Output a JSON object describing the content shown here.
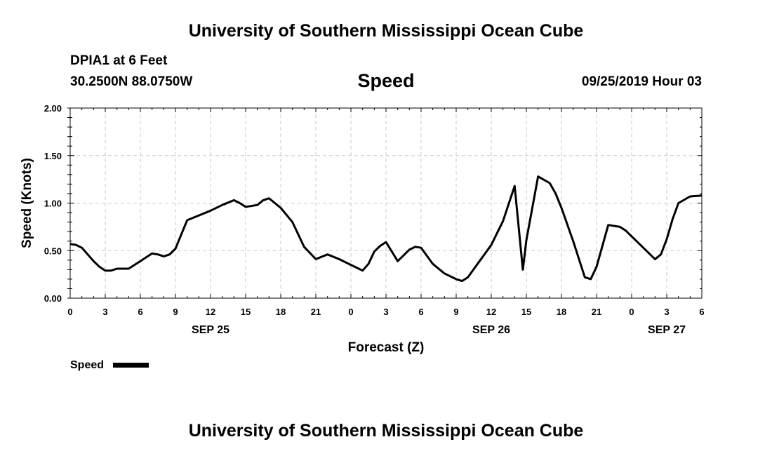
{
  "header": {
    "title": "University of Southern Mississippi Ocean Cube",
    "station": "DPIA1 at 6 Feet",
    "coords": "30.2500N 88.0750W",
    "parameter": "Speed",
    "timestamp": "09/25/2019 Hour 03"
  },
  "footer": {
    "title": "University of Southern Mississippi Ocean Cube"
  },
  "chart_data": {
    "type": "line",
    "title": "Speed",
    "xlabel": "Forecast (Z)",
    "ylabel": "Speed (Knots)",
    "xlim": [
      0,
      54
    ],
    "ylim": [
      0,
      2
    ],
    "grid": true,
    "x_tick_values": [
      0,
      3,
      6,
      9,
      12,
      15,
      18,
      21,
      24,
      27,
      30,
      33,
      36,
      39,
      42,
      45,
      48,
      51,
      54
    ],
    "x_tick_labels": [
      "0",
      "3",
      "6",
      "9",
      "12",
      "15",
      "18",
      "21",
      "0",
      "3",
      "6",
      "9",
      "12",
      "15",
      "18",
      "21",
      "0",
      "3",
      "6"
    ],
    "y_tick_values": [
      0,
      0.5,
      1,
      1.5,
      2
    ],
    "y_tick_labels": [
      "0.00",
      "0.50",
      "1.00",
      "1.50",
      "2.00"
    ],
    "day_labels": [
      {
        "x": 12,
        "text": "SEP 25"
      },
      {
        "x": 36,
        "text": "SEP 26"
      },
      {
        "x": 51,
        "text": "SEP 27"
      }
    ],
    "legend": {
      "position": "bottom-left",
      "entries": [
        "Speed"
      ]
    },
    "series": [
      {
        "name": "Speed",
        "color": "#000000",
        "x": [
          0,
          0.5,
          1,
          1.5,
          2,
          2.5,
          3,
          3.5,
          4,
          5,
          6,
          7,
          7.5,
          8,
          8.5,
          9,
          9.5,
          10,
          11,
          12,
          13,
          14,
          14.5,
          15,
          16,
          16.5,
          17,
          17.5,
          18,
          19,
          20,
          21,
          22,
          23,
          24,
          25,
          25.5,
          26,
          26.5,
          27,
          28,
          29,
          29.5,
          30,
          31,
          32,
          33,
          33.5,
          34,
          35,
          36,
          37,
          38,
          38.7,
          39,
          40,
          41,
          41.5,
          42,
          43,
          44,
          44.5,
          45,
          46,
          47,
          47.5,
          48,
          49,
          50,
          50.5,
          51,
          51.5,
          52,
          53,
          54
        ],
        "y": [
          0.57,
          0.56,
          0.53,
          0.46,
          0.39,
          0.33,
          0.29,
          0.29,
          0.31,
          0.31,
          0.39,
          0.47,
          0.46,
          0.44,
          0.46,
          0.52,
          0.67,
          0.82,
          0.87,
          0.92,
          0.98,
          1.03,
          1.0,
          0.96,
          0.98,
          1.03,
          1.05,
          1.0,
          0.95,
          0.8,
          0.54,
          0.41,
          0.46,
          0.41,
          0.35,
          0.29,
          0.36,
          0.49,
          0.55,
          0.59,
          0.39,
          0.51,
          0.54,
          0.53,
          0.36,
          0.26,
          0.2,
          0.18,
          0.22,
          0.39,
          0.56,
          0.81,
          1.18,
          0.3,
          0.61,
          1.28,
          1.21,
          1.1,
          0.95,
          0.6,
          0.22,
          0.2,
          0.33,
          0.77,
          0.75,
          0.71,
          0.65,
          0.53,
          0.41,
          0.46,
          0.62,
          0.83,
          1.0,
          1.07,
          1.08
        ]
      }
    ]
  }
}
